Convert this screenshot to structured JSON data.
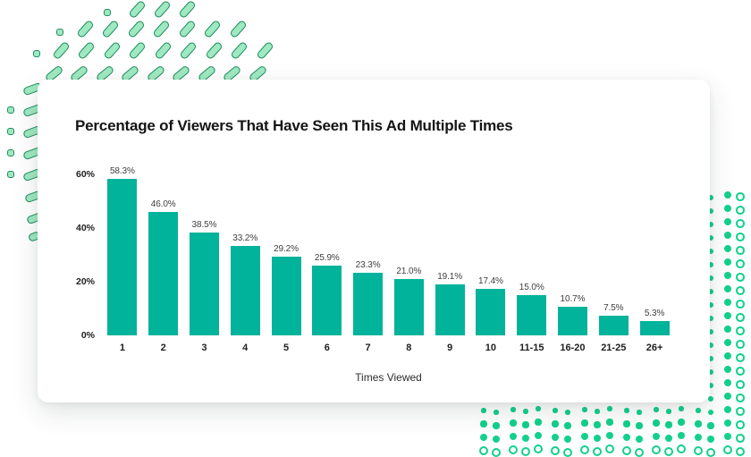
{
  "card": {
    "title": "Percentage of Viewers That Have Seen This Ad Multiple Times"
  },
  "chart_data": {
    "type": "bar",
    "title": "Percentage of Viewers That Have Seen This Ad Multiple Times",
    "xlabel": "Times Viewed",
    "ylabel": "",
    "categories": [
      "1",
      "2",
      "3",
      "4",
      "5",
      "6",
      "7",
      "8",
      "9",
      "10",
      "11-15",
      "16-20",
      "21-25",
      "26+"
    ],
    "values": [
      58.3,
      46.0,
      38.5,
      33.2,
      29.2,
      25.9,
      23.3,
      21.0,
      19.1,
      17.4,
      15.0,
      10.7,
      7.5,
      5.3
    ],
    "value_labels": [
      "58.3%",
      "46.0%",
      "38.5%",
      "33.2%",
      "29.2%",
      "25.9%",
      "23.3%",
      "21.0%",
      "19.1%",
      "17.4%",
      "15.0%",
      "10.7%",
      "7.5%",
      "5.3%"
    ],
    "ylim": [
      0,
      60
    ],
    "yticks": [
      0,
      20,
      40,
      60
    ],
    "ytick_labels": [
      "0%",
      "20%",
      "40%",
      "60%"
    ],
    "grid": false,
    "legend": false,
    "bar_color": "#00B39A"
  },
  "colors": {
    "bar": "#00B39A",
    "title_text": "#141414",
    "axis_tick_text": "#1e1e1e",
    "value_label_text": "#3f3f3f",
    "axis_title_text": "#2d2d2d",
    "card_background": "#ffffff",
    "page_background": "#ffffff",
    "decor_dash_fill": "#9fe9c0",
    "decor_dash_edge": "#1f8a60",
    "decor_dot_green": "#12d18c"
  }
}
